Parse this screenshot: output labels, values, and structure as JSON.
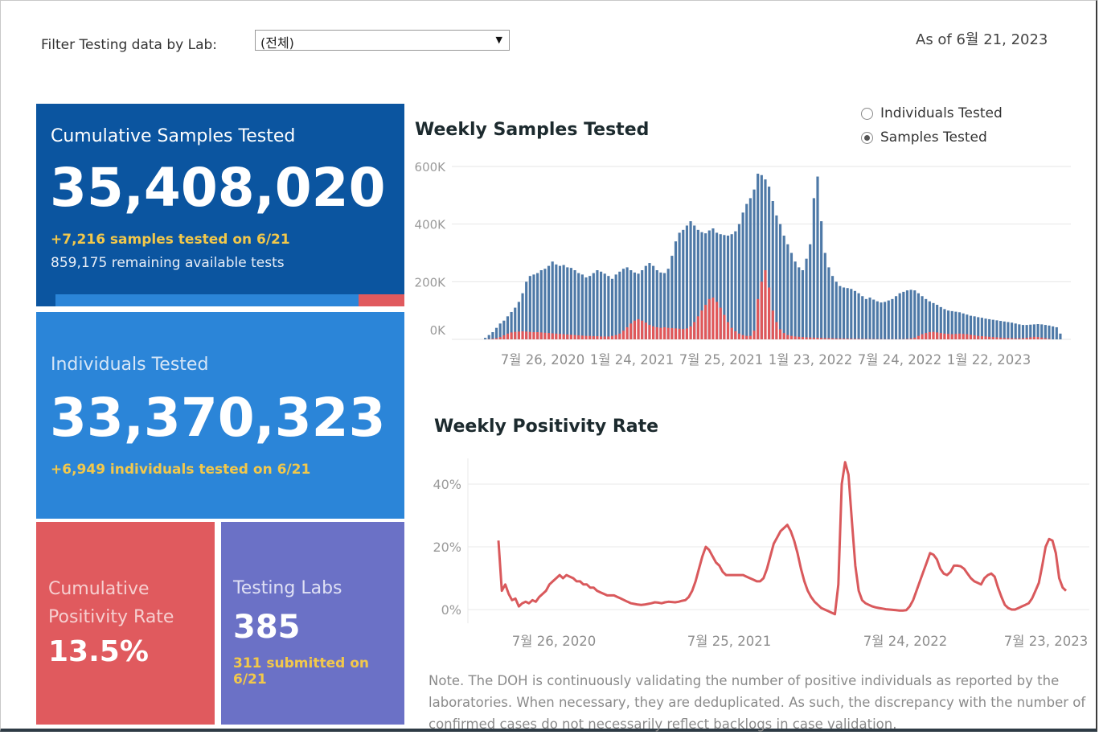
{
  "filter": {
    "label": "Filter Testing data by Lab:",
    "selected": "(전체)"
  },
  "as_of": "As of 6월 21, 2023",
  "cards": {
    "samples": {
      "title": "Cumulative Samples Tested",
      "value": "35,408,020",
      "delta": "+7,216 samples tested on 6/21",
      "remaining": "859,175 remaining available tests",
      "used_fraction": 0.869
    },
    "individuals": {
      "title": "Individuals Tested",
      "value": "33,370,323",
      "delta": "+6,949  individuals  tested on 6/21"
    },
    "positivity": {
      "title_line1": "Cumulative",
      "title_line2": "Positivity Rate",
      "value": "13.5%"
    },
    "labs": {
      "title": "Testing Labs",
      "value": "385",
      "delta": "311 submitted on 6/21"
    }
  },
  "toggle": {
    "options": [
      "Individuals Tested",
      "Samples Tested"
    ],
    "selected": "Samples Tested"
  },
  "colors": {
    "samples_card": "#0b55a0",
    "individuals_card": "#2b85d8",
    "positivity_card": "#e05a5e",
    "labs_card": "#6b71c6",
    "highlight_text": "#f2c84b",
    "bar_total": "#4e79a7",
    "bar_positive": "#e15759",
    "line": "#d9595c"
  },
  "chart_data": [
    {
      "type": "bar",
      "title": "Weekly Samples Tested",
      "x_tick_labels": [
        "7월 26, 2020",
        "1월 24, 2021",
        "7월 25, 2021",
        "1월 23, 2022",
        "7월 24, 2022",
        "1월 22, 2023"
      ],
      "y_tick_labels": [
        "0K",
        "200K",
        "400K",
        "600K"
      ],
      "ylim": [
        0,
        600000
      ],
      "grid": true,
      "series": [
        {
          "values": [
            5000,
            15000,
            25000,
            40000,
            55000,
            65000,
            80000,
            95000,
            110000,
            130000,
            160000,
            200000,
            220000,
            225000,
            230000,
            240000,
            245000,
            255000,
            270000,
            260000,
            255000,
            258000,
            250000,
            248000,
            240000,
            230000,
            225000,
            215000,
            220000,
            230000,
            240000,
            235000,
            228000,
            220000,
            210000,
            225000,
            235000,
            245000,
            250000,
            240000,
            232000,
            228000,
            240000,
            255000,
            265000,
            255000,
            240000,
            232000,
            230000,
            245000,
            290000,
            340000,
            370000,
            380000,
            395000,
            410000,
            395000,
            380000,
            372000,
            368000,
            378000,
            385000,
            370000,
            365000,
            362000,
            360000,
            365000,
            375000,
            400000,
            440000,
            470000,
            490000,
            520000,
            575000,
            570000,
            555000,
            530000,
            480000,
            430000,
            400000,
            360000,
            330000,
            300000,
            270000,
            250000,
            240000,
            280000,
            330000,
            490000,
            565000,
            410000,
            300000,
            250000,
            220000,
            200000,
            185000,
            180000,
            178000,
            175000,
            168000,
            160000,
            150000,
            140000,
            145000,
            138000,
            132000,
            128000,
            130000,
            135000,
            140000,
            150000,
            160000,
            165000,
            170000,
            172000,
            170000,
            160000,
            150000,
            140000,
            132000,
            126000,
            120000,
            112000,
            105000,
            100000,
            98000,
            96000,
            94000,
            90000,
            86000,
            82000,
            80000,
            77000,
            75000,
            72000,
            70000,
            68000,
            66000,
            64000,
            62000,
            60000,
            58000,
            55000,
            52000,
            50000,
            50000,
            51000,
            52000,
            53000,
            52000,
            50000,
            48000,
            45000,
            42000,
            20000
          ],
          "color_key": "bar_total"
        },
        {
          "values": [
            0,
            1000,
            2000,
            4000,
            8000,
            14000,
            20000,
            24000,
            26000,
            27000,
            28000,
            27000,
            26000,
            25000,
            25000,
            24000,
            23000,
            22000,
            21000,
            20000,
            19000,
            18000,
            17000,
            16000,
            15000,
            14000,
            13000,
            12000,
            12000,
            11000,
            11000,
            10000,
            10000,
            10000,
            12000,
            15000,
            20000,
            30000,
            42000,
            55000,
            65000,
            70000,
            65000,
            58000,
            50000,
            45000,
            42000,
            40000,
            42000,
            40000,
            39000,
            38000,
            37000,
            36000,
            38000,
            45000,
            60000,
            80000,
            100000,
            120000,
            140000,
            145000,
            130000,
            110000,
            85000,
            60000,
            40000,
            28000,
            20000,
            15000,
            12000,
            12000,
            30000,
            140000,
            200000,
            240000,
            180000,
            100000,
            60000,
            35000,
            22000,
            15000,
            12000,
            10000,
            9000,
            8000,
            7000,
            6500,
            6000,
            5500,
            5000,
            4500,
            4000,
            3500,
            3000,
            2800,
            2600,
            2400,
            2200,
            2000,
            1800,
            1600,
            1400,
            1200,
            1000,
            900,
            800,
            700,
            600,
            600,
            600,
            700,
            900,
            1500,
            3000,
            6000,
            12000,
            18000,
            22000,
            25000,
            26000,
            24000,
            22000,
            20000,
            19000,
            18000,
            19000,
            20000,
            19000,
            18000,
            16000,
            14000,
            12000,
            11000,
            10000,
            9000,
            8000,
            7000,
            6000,
            5000,
            4500,
            4000,
            3500,
            3500,
            4000,
            5500,
            7000,
            9000,
            8000,
            6000,
            4000,
            2000
          ],
          "color_key": "bar_positive"
        }
      ]
    },
    {
      "type": "line",
      "title": "Weekly Positivity Rate",
      "x_tick_labels": [
        "7월 26, 2020",
        "7월 25, 2021",
        "7월 24, 2022",
        "7월 23, 2023"
      ],
      "y_tick_labels": [
        "0%",
        "20%",
        "40%"
      ],
      "ylim": [
        0,
        45
      ],
      "grid": true,
      "series": [
        {
          "values": [
            22,
            6,
            8,
            5,
            3,
            3.5,
            1,
            2,
            2.5,
            2,
            3,
            2.5,
            4,
            5,
            6,
            8,
            9,
            10,
            11,
            10,
            11,
            10.5,
            10,
            9,
            9,
            8,
            8,
            7,
            7,
            6,
            5.5,
            5,
            4.5,
            4.5,
            4.5,
            4,
            3.5,
            3,
            2.5,
            2,
            1.8,
            1.6,
            1.5,
            1.6,
            1.8,
            2,
            2.3,
            2.2,
            2,
            2.3,
            2.5,
            2.4,
            2.3,
            2.5,
            2.8,
            3,
            4,
            6,
            9,
            13,
            17,
            20,
            19,
            17,
            15,
            14,
            12,
            11,
            11,
            11,
            11,
            11,
            11,
            10.5,
            10,
            9.5,
            9,
            9,
            10,
            13,
            17,
            21,
            23,
            25,
            26,
            27,
            25,
            22,
            18,
            13,
            9,
            6,
            4,
            2.5,
            1.5,
            0.5,
            0,
            -0.5,
            -1,
            -1.5,
            8,
            40,
            47,
            43,
            28,
            14,
            6,
            3,
            2,
            1.5,
            1,
            0.7,
            0.5,
            0.3,
            0.1,
            0,
            -0.1,
            -0.2,
            -0.3,
            -0.3,
            -0.2,
            1,
            3,
            6,
            9,
            12,
            15,
            18,
            17.5,
            16,
            13,
            11.5,
            11,
            12,
            14,
            14,
            13.8,
            13,
            11.5,
            10,
            9,
            8.5,
            8,
            10,
            11,
            11.5,
            10.5,
            7,
            4,
            1.5,
            0.5,
            0,
            0,
            0.5,
            1,
            1.5,
            2,
            3.5,
            6,
            8.5,
            14,
            20,
            22.5,
            22,
            18,
            10,
            7,
            6
          ]
        }
      ]
    }
  ],
  "note": "Note. The DOH is continuously validating the number of positive individuals as reported by the laboratories. When necessary, they are deduplicated. As such, the discrepancy with the number of confirmed cases do not necessarily reflect backlogs in case validation."
}
